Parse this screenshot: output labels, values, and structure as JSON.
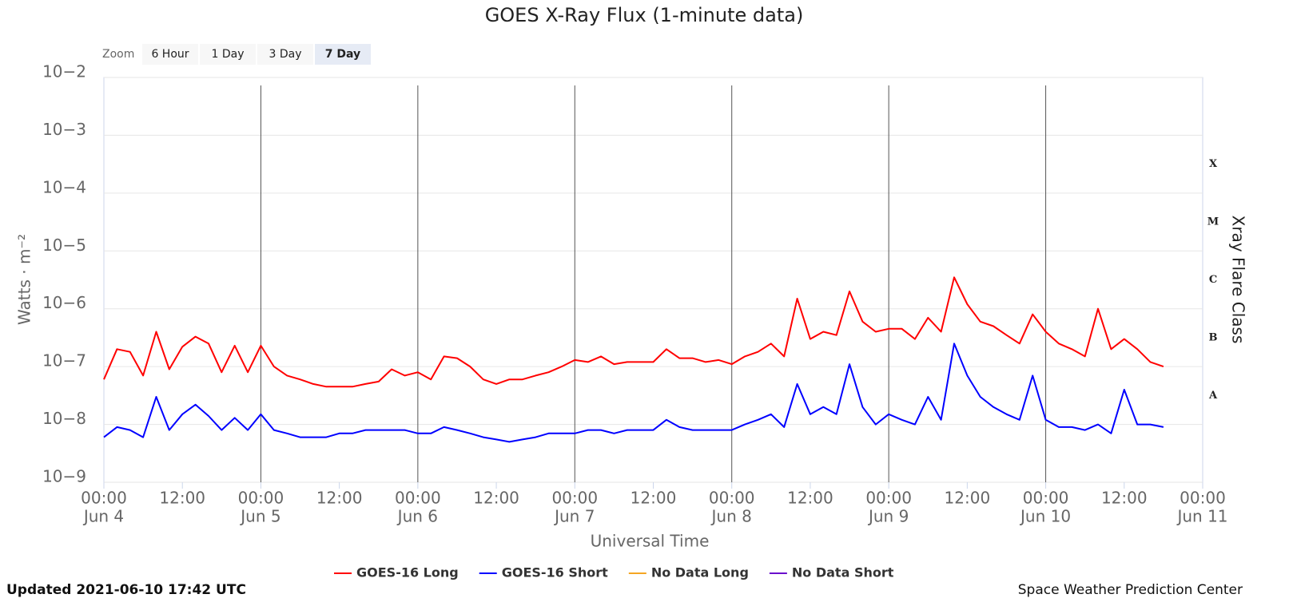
{
  "chart_data": {
    "type": "line",
    "title": "GOES X-Ray Flux (1-minute data)",
    "xlabel": "Universal Time",
    "ylabel": "Watts · m⁻²",
    "y2label": "Xray Flare Class",
    "zoom": {
      "label": "Zoom",
      "buttons": [
        "6 Hour",
        "1 Day",
        "3 Day",
        "7 Day"
      ],
      "selected": 3
    },
    "updated": "Updated 2021-06-10 17:42 UTC",
    "credit": "Space Weather Prediction Center",
    "log_scale": true,
    "grid": true,
    "legend": "bottom",
    "ylim": [
      1e-09,
      0.01
    ],
    "yticks": [
      {
        "value": 1e-09,
        "label": "10−9"
      },
      {
        "value": 1e-08,
        "label": "10−8"
      },
      {
        "value": 1e-07,
        "label": "10−7"
      },
      {
        "value": 1e-06,
        "label": "10−6"
      },
      {
        "value": 1e-05,
        "label": "10−5"
      },
      {
        "value": 0.0001,
        "label": "10−4"
      },
      {
        "value": 0.001,
        "label": "10−3"
      },
      {
        "value": 0.01,
        "label": "10−2"
      }
    ],
    "flare_classes": [
      {
        "value": 1e-08,
        "label": "A"
      },
      {
        "value": 1e-07,
        "label": "B"
      },
      {
        "value": 1e-06,
        "label": "C"
      },
      {
        "value": 1e-05,
        "label": "M"
      },
      {
        "value": 0.0001,
        "label": "X"
      }
    ],
    "xlim": [
      0,
      168
    ],
    "xticks": [
      {
        "value": 0,
        "label": "00:00",
        "date": "Jun 4"
      },
      {
        "value": 12,
        "label": "12:00"
      },
      {
        "value": 24,
        "label": "00:00",
        "date": "Jun 5"
      },
      {
        "value": 36,
        "label": "12:00"
      },
      {
        "value": 48,
        "label": "00:00",
        "date": "Jun 6"
      },
      {
        "value": 60,
        "label": "12:00"
      },
      {
        "value": 72,
        "label": "00:00",
        "date": "Jun 7"
      },
      {
        "value": 84,
        "label": "12:00"
      },
      {
        "value": 96,
        "label": "00:00",
        "date": "Jun 8"
      },
      {
        "value": 108,
        "label": "12:00"
      },
      {
        "value": 120,
        "label": "00:00",
        "date": "Jun 9"
      },
      {
        "value": 132,
        "label": "12:00"
      },
      {
        "value": 144,
        "label": "00:00",
        "date": "Jun 10"
      },
      {
        "value": 156,
        "label": "12:00"
      },
      {
        "value": 168,
        "label": "00:00",
        "date": "Jun 11"
      }
    ],
    "x": [
      0,
      2,
      4,
      6,
      8,
      10,
      12,
      14,
      16,
      18,
      20,
      22,
      24,
      26,
      28,
      30,
      32,
      34,
      36,
      38,
      40,
      42,
      44,
      46,
      48,
      50,
      52,
      54,
      56,
      58,
      60,
      62,
      64,
      66,
      68,
      70,
      72,
      74,
      76,
      78,
      80,
      82,
      84,
      86,
      88,
      90,
      92,
      94,
      96,
      98,
      100,
      102,
      104,
      106,
      108,
      110,
      112,
      114,
      116,
      118,
      120,
      122,
      124,
      126,
      128,
      130,
      132,
      134,
      136,
      138,
      140,
      142,
      144,
      146,
      148,
      150,
      152,
      154,
      156,
      158,
      160,
      162
    ],
    "series": [
      {
        "name": "GOES-16 Long",
        "color": "#ff0000",
        "values": [
          6e-08,
          2e-07,
          1.8e-07,
          7e-08,
          4e-07,
          9e-08,
          2.2e-07,
          3.3e-07,
          2.5e-07,
          8e-08,
          2.3e-07,
          8e-08,
          2.3e-07,
          1e-07,
          7e-08,
          6e-08,
          5e-08,
          4.5e-08,
          4.5e-08,
          4.5e-08,
          5e-08,
          5.5e-08,
          9e-08,
          7e-08,
          8e-08,
          6e-08,
          1.5e-07,
          1.4e-07,
          1e-07,
          6e-08,
          5e-08,
          6e-08,
          6e-08,
          7e-08,
          8e-08,
          1e-07,
          1.3e-07,
          1.2e-07,
          1.5e-07,
          1.1e-07,
          1.2e-07,
          1.2e-07,
          1.2e-07,
          2e-07,
          1.4e-07,
          1.4e-07,
          1.2e-07,
          1.3e-07,
          1.1e-07,
          1.5e-07,
          1.8e-07,
          2.5e-07,
          1.5e-07,
          1.5e-06,
          3e-07,
          4e-07,
          3.5e-07,
          2e-06,
          6e-07,
          4e-07,
          4.5e-07,
          4.5e-07,
          3e-07,
          7e-07,
          4e-07,
          3.5e-06,
          1.2e-06,
          6e-07,
          5e-07,
          3.5e-07,
          2.5e-07,
          8e-07,
          4e-07,
          2.5e-07,
          2e-07,
          1.5e-07,
          1e-06,
          2e-07,
          3e-07,
          2e-07,
          1.2e-07,
          1e-07
        ]
      },
      {
        "name": "GOES-16 Short",
        "color": "#0000ff",
        "values": [
          6e-09,
          9e-09,
          8e-09,
          6e-09,
          3e-08,
          8e-09,
          1.5e-08,
          2.2e-08,
          1.4e-08,
          8e-09,
          1.3e-08,
          8e-09,
          1.5e-08,
          8e-09,
          7e-09,
          6e-09,
          6e-09,
          6e-09,
          7e-09,
          7e-09,
          8e-09,
          8e-09,
          8e-09,
          8e-09,
          7e-09,
          7e-09,
          9e-09,
          8e-09,
          7e-09,
          6e-09,
          5.5e-09,
          5e-09,
          5.5e-09,
          6e-09,
          7e-09,
          7e-09,
          7e-09,
          8e-09,
          8e-09,
          7e-09,
          8e-09,
          8e-09,
          8e-09,
          1.2e-08,
          9e-09,
          8e-09,
          8e-09,
          8e-09,
          8e-09,
          1e-08,
          1.2e-08,
          1.5e-08,
          9e-09,
          5e-08,
          1.5e-08,
          2e-08,
          1.5e-08,
          1.1e-07,
          2e-08,
          1e-08,
          1.5e-08,
          1.2e-08,
          1e-08,
          3e-08,
          1.2e-08,
          2.5e-07,
          7e-08,
          3e-08,
          2e-08,
          1.5e-08,
          1.2e-08,
          7e-08,
          1.2e-08,
          9e-09,
          9e-09,
          8e-09,
          1e-08,
          7e-09,
          4e-08,
          1e-08,
          1e-08,
          9e-09
        ]
      },
      {
        "name": "No Data Long",
        "color": "#f5a623",
        "values": [
          null,
          null,
          null,
          null,
          null,
          null,
          null,
          null,
          null,
          null,
          null,
          null,
          null,
          null,
          null,
          null,
          null,
          null,
          null,
          null,
          null,
          null,
          null,
          null,
          null,
          null,
          null,
          null,
          null,
          null,
          null,
          null,
          null,
          null,
          null,
          null,
          null,
          null,
          null,
          null,
          null,
          null,
          null,
          null,
          null,
          null,
          null,
          null,
          null,
          null,
          null,
          null,
          null,
          null,
          null,
          null,
          null,
          null,
          null,
          null,
          null,
          null,
          null,
          null,
          null,
          null,
          null,
          null,
          null,
          null,
          null,
          null,
          null,
          null,
          null,
          null,
          null,
          null,
          null,
          null,
          null,
          null
        ]
      },
      {
        "name": "No Data Short",
        "color": "#6a0dcc",
        "values": [
          null,
          null,
          null,
          null,
          null,
          null,
          null,
          null,
          null,
          null,
          null,
          null,
          null,
          null,
          null,
          null,
          null,
          null,
          null,
          null,
          null,
          null,
          null,
          null,
          null,
          null,
          null,
          null,
          null,
          null,
          null,
          null,
          null,
          null,
          null,
          null,
          null,
          null,
          null,
          null,
          null,
          null,
          null,
          null,
          null,
          null,
          null,
          null,
          null,
          null,
          null,
          null,
          null,
          null,
          null,
          null,
          null,
          null,
          null,
          null,
          null,
          null,
          null,
          null,
          null,
          null,
          null,
          null,
          null,
          null,
          null,
          null,
          null,
          null,
          null,
          null,
          null,
          null,
          null,
          null,
          null,
          null
        ]
      }
    ]
  }
}
